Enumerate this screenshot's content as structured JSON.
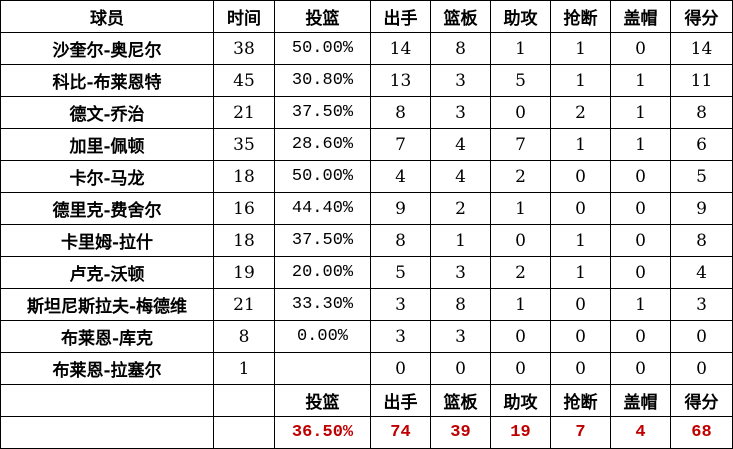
{
  "headers": [
    "球员",
    "时间",
    "投篮",
    "出手",
    "篮板",
    "助攻",
    "抢断",
    "盖帽",
    "得分"
  ],
  "rows": [
    [
      "沙奎尔-奥尼尔",
      "38",
      "50.00%",
      "14",
      "8",
      "1",
      "1",
      "0",
      "14"
    ],
    [
      "科比-布莱恩特",
      "45",
      "30.80%",
      "13",
      "3",
      "5",
      "1",
      "1",
      "11"
    ],
    [
      "德文-乔治",
      "21",
      "37.50%",
      "8",
      "3",
      "0",
      "2",
      "1",
      "8"
    ],
    [
      "加里-佩顿",
      "35",
      "28.60%",
      "7",
      "4",
      "7",
      "1",
      "1",
      "6"
    ],
    [
      "卡尔-马龙",
      "18",
      "50.00%",
      "4",
      "4",
      "2",
      "0",
      "0",
      "5"
    ],
    [
      "德里克-费舍尔",
      "16",
      "44.40%",
      "9",
      "2",
      "1",
      "0",
      "0",
      "9"
    ],
    [
      "卡里姆-拉什",
      "18",
      "37.50%",
      "8",
      "1",
      "0",
      "1",
      "0",
      "8"
    ],
    [
      "卢克-沃顿",
      "19",
      "20.00%",
      "5",
      "3",
      "2",
      "1",
      "0",
      "4"
    ],
    [
      "斯坦尼斯拉夫-梅德维",
      "21",
      "33.30%",
      "3",
      "8",
      "1",
      "0",
      "1",
      "3"
    ],
    [
      "布莱恩-库克",
      "8",
      "0.00%",
      "3",
      "3",
      "0",
      "0",
      "0",
      "0"
    ],
    [
      "布莱恩-拉塞尔",
      "1",
      "",
      "0",
      "0",
      "0",
      "0",
      "0",
      "0"
    ]
  ],
  "totals_headers": [
    "",
    "",
    "投篮",
    "出手",
    "篮板",
    "助攻",
    "抢断",
    "盖帽",
    "得分"
  ],
  "totals": [
    "",
    "",
    "36.50%",
    "74",
    "39",
    "19",
    "7",
    "4",
    "68"
  ],
  "colors": {
    "totals_text": "#c00000",
    "border": "#000000"
  }
}
